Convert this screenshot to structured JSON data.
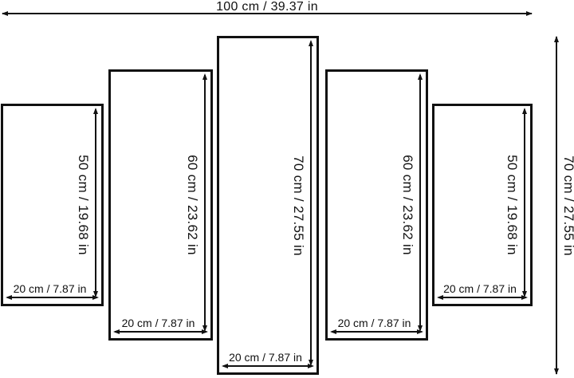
{
  "diagram": {
    "overall": {
      "width_label": "100 cm / 39.37 in",
      "height_label": "70 cm / 27.55 in",
      "width_cm": 100,
      "height_cm": 70
    },
    "panels": [
      {
        "height_label": "50 cm / 19.68 in",
        "width_label": "20 cm / 7.87 in",
        "height_cm": 50,
        "width_cm": 20
      },
      {
        "height_label": "60 cm / 23.62 in",
        "width_label": "20 cm / 7.87 in",
        "height_cm": 60,
        "width_cm": 20
      },
      {
        "height_label": "70 cm / 27.55 in",
        "width_label": "20 cm / 7.87 in",
        "height_cm": 70,
        "width_cm": 20
      },
      {
        "height_label": "60 cm / 23.62 in",
        "width_label": "20 cm / 7.87 in",
        "height_cm": 60,
        "width_cm": 20
      },
      {
        "height_label": "50 cm / 19.68 in",
        "width_label": "20 cm / 7.87 in",
        "height_cm": 50,
        "width_cm": 20
      }
    ],
    "colors": {
      "line": "#111111",
      "background": "#ffffff"
    }
  }
}
